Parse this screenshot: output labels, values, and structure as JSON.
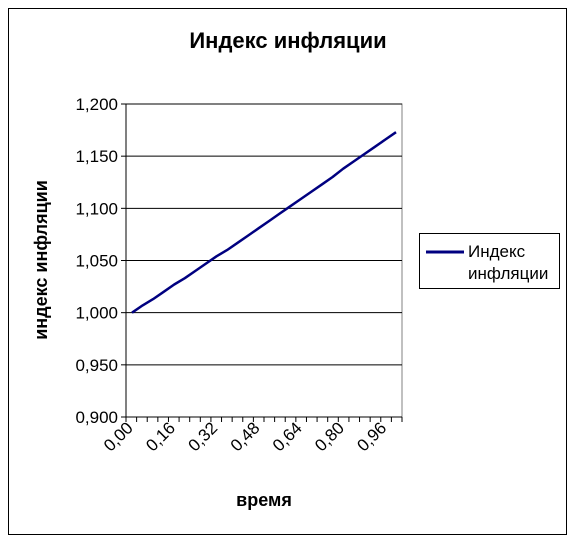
{
  "chart_data": {
    "type": "line",
    "title": "Индекс инфляции",
    "xlabel": "время",
    "ylabel": "индекс инфляции",
    "ylim": [
      0.9,
      1.2
    ],
    "yticks": [
      "0,900",
      "0,950",
      "1,000",
      "1,050",
      "1,100",
      "1,150",
      "1,200"
    ],
    "xtick_labels": [
      "0,00",
      "0,16",
      "0,32",
      "0,48",
      "0,64",
      "0,80",
      "0,96"
    ],
    "grid": true,
    "legend_position": "right",
    "series": [
      {
        "name": "Индекс инфляции",
        "color": "#000080",
        "x": [
          0.0,
          0.04,
          0.08,
          0.12,
          0.16,
          0.2,
          0.24,
          0.28,
          0.32,
          0.36,
          0.4,
          0.44,
          0.48,
          0.52,
          0.56,
          0.6,
          0.64,
          0.68,
          0.72,
          0.76,
          0.8,
          0.84,
          0.88,
          0.92,
          0.96,
          1.0
        ],
        "values": [
          1.0,
          1.007,
          1.013,
          1.02,
          1.027,
          1.033,
          1.04,
          1.047,
          1.054,
          1.06,
          1.067,
          1.074,
          1.081,
          1.088,
          1.095,
          1.102,
          1.109,
          1.116,
          1.123,
          1.13,
          1.138,
          1.145,
          1.152,
          1.159,
          1.166,
          1.173
        ]
      }
    ]
  }
}
